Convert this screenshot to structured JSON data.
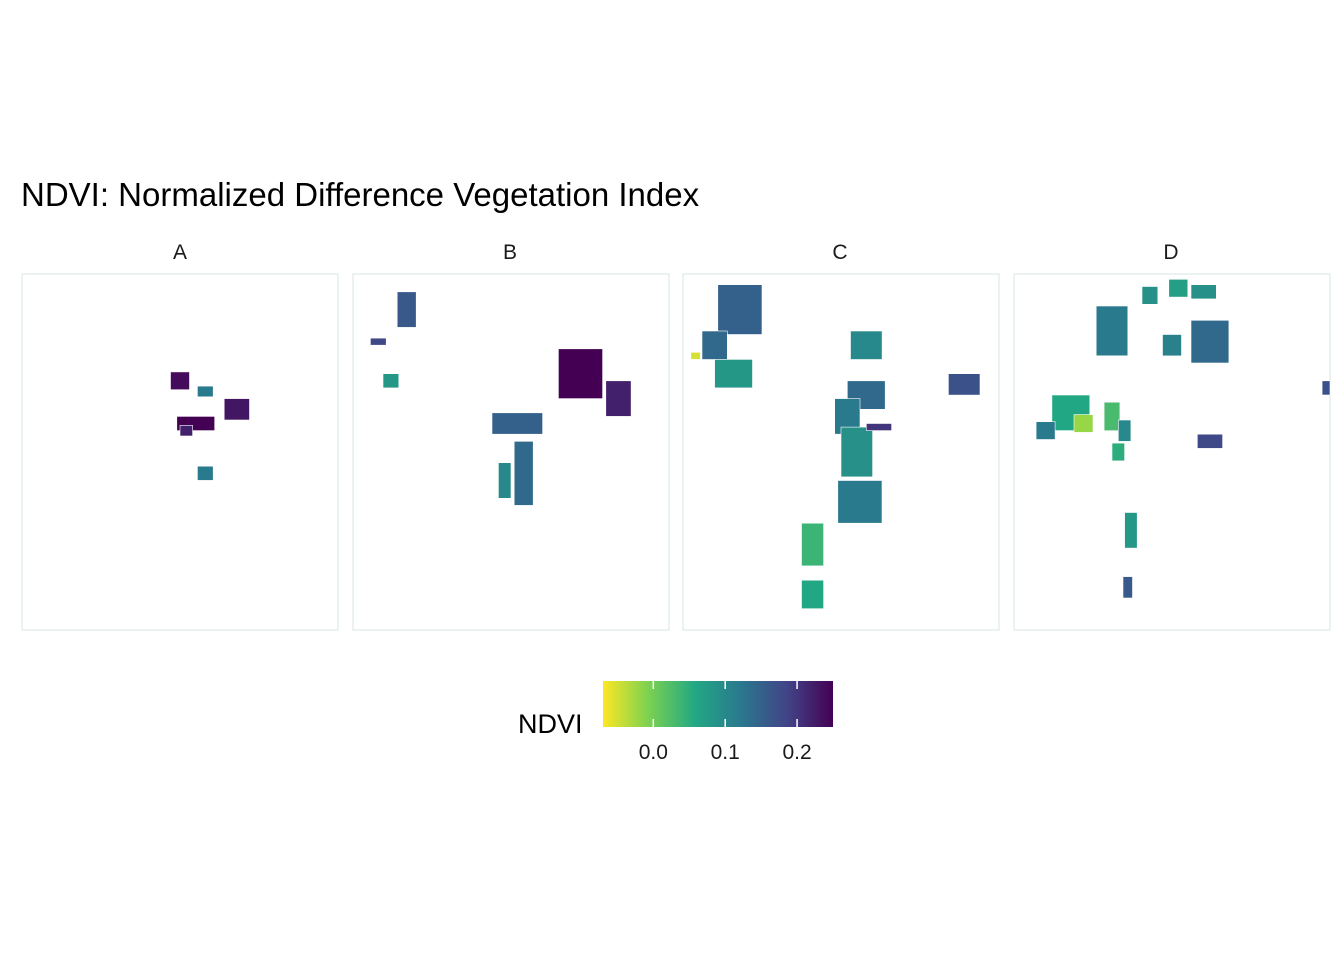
{
  "chart_data": {
    "type": "map",
    "title": "NDVI: Normalized Difference Vegetation Index",
    "facets": [
      {
        "label": "A",
        "regions": [
          {
            "c": [
              0.5,
              0.3
            ],
            "s": [
              0.06,
              0.05
            ],
            "v": 0.24
          },
          {
            "c": [
              0.55,
              0.42
            ],
            "s": [
              0.12,
              0.04
            ],
            "v": 0.25
          },
          {
            "c": [
              0.68,
              0.38
            ],
            "s": [
              0.08,
              0.06
            ],
            "v": 0.23
          },
          {
            "c": [
              0.58,
              0.33
            ],
            "s": [
              0.05,
              0.03
            ],
            "v": 0.12
          },
          {
            "c": [
              0.58,
              0.56
            ],
            "s": [
              0.05,
              0.04
            ],
            "v": 0.12
          },
          {
            "c": [
              0.52,
              0.44
            ],
            "s": [
              0.04,
              0.03
            ],
            "v": 0.22
          }
        ]
      },
      {
        "label": "B",
        "regions": [
          {
            "c": [
              0.17,
              0.1
            ],
            "s": [
              0.06,
              0.1
            ],
            "v": 0.16
          },
          {
            "c": [
              0.08,
              0.19
            ],
            "s": [
              0.05,
              0.02
            ],
            "v": 0.18
          },
          {
            "c": [
              0.12,
              0.3
            ],
            "s": [
              0.05,
              0.04
            ],
            "v": 0.08
          },
          {
            "c": [
              0.72,
              0.28
            ],
            "s": [
              0.14,
              0.14
            ],
            "v": 0.25
          },
          {
            "c": [
              0.84,
              0.35
            ],
            "s": [
              0.08,
              0.1
            ],
            "v": 0.22
          },
          {
            "c": [
              0.52,
              0.42
            ],
            "s": [
              0.16,
              0.06
            ],
            "v": 0.15
          },
          {
            "c": [
              0.54,
              0.56
            ],
            "s": [
              0.06,
              0.18
            ],
            "v": 0.14
          },
          {
            "c": [
              0.48,
              0.58
            ],
            "s": [
              0.04,
              0.1
            ],
            "v": 0.1
          }
        ]
      },
      {
        "label": "C",
        "regions": [
          {
            "c": [
              0.18,
              0.1
            ],
            "s": [
              0.14,
              0.14
            ],
            "v": 0.15
          },
          {
            "c": [
              0.1,
              0.2
            ],
            "s": [
              0.08,
              0.08
            ],
            "v": 0.14
          },
          {
            "c": [
              0.16,
              0.28
            ],
            "s": [
              0.12,
              0.08
            ],
            "v": 0.08
          },
          {
            "c": [
              0.04,
              0.23
            ],
            "s": [
              0.03,
              0.02
            ],
            "v": -0.05
          },
          {
            "c": [
              0.58,
              0.2
            ],
            "s": [
              0.1,
              0.08
            ],
            "v": 0.1
          },
          {
            "c": [
              0.58,
              0.34
            ],
            "s": [
              0.12,
              0.08
            ],
            "v": 0.14
          },
          {
            "c": [
              0.52,
              0.4
            ],
            "s": [
              0.08,
              0.1
            ],
            "v": 0.12
          },
          {
            "c": [
              0.55,
              0.5
            ],
            "s": [
              0.1,
              0.14
            ],
            "v": 0.09
          },
          {
            "c": [
              0.56,
              0.64
            ],
            "s": [
              0.14,
              0.12
            ],
            "v": 0.12
          },
          {
            "c": [
              0.41,
              0.76
            ],
            "s": [
              0.07,
              0.12
            ],
            "v": 0.04
          },
          {
            "c": [
              0.41,
              0.9
            ],
            "s": [
              0.07,
              0.08
            ],
            "v": 0.06
          },
          {
            "c": [
              0.89,
              0.31
            ],
            "s": [
              0.1,
              0.06
            ],
            "v": 0.17
          },
          {
            "c": [
              0.62,
              0.43
            ],
            "s": [
              0.08,
              0.02
            ],
            "v": 0.2
          }
        ]
      },
      {
        "label": "D",
        "regions": [
          {
            "c": [
              0.31,
              0.16
            ],
            "s": [
              0.1,
              0.14
            ],
            "v": 0.12
          },
          {
            "c": [
              0.43,
              0.06
            ],
            "s": [
              0.05,
              0.05
            ],
            "v": 0.09
          },
          {
            "c": [
              0.52,
              0.04
            ],
            "s": [
              0.06,
              0.05
            ],
            "v": 0.07
          },
          {
            "c": [
              0.6,
              0.05
            ],
            "s": [
              0.08,
              0.04
            ],
            "v": 0.09
          },
          {
            "c": [
              0.5,
              0.2
            ],
            "s": [
              0.06,
              0.06
            ],
            "v": 0.11
          },
          {
            "c": [
              0.62,
              0.19
            ],
            "s": [
              0.12,
              0.12
            ],
            "v": 0.14
          },
          {
            "c": [
              0.18,
              0.39
            ],
            "s": [
              0.12,
              0.1
            ],
            "v": 0.06
          },
          {
            "c": [
              0.22,
              0.42
            ],
            "s": [
              0.06,
              0.05
            ],
            "v": -0.02
          },
          {
            "c": [
              0.31,
              0.4
            ],
            "s": [
              0.05,
              0.08
            ],
            "v": 0.03
          },
          {
            "c": [
              0.35,
              0.44
            ],
            "s": [
              0.04,
              0.06
            ],
            "v": 0.1
          },
          {
            "c": [
              0.1,
              0.44
            ],
            "s": [
              0.06,
              0.05
            ],
            "v": 0.12
          },
          {
            "c": [
              0.33,
              0.5
            ],
            "s": [
              0.04,
              0.05
            ],
            "v": 0.05
          },
          {
            "c": [
              0.62,
              0.47
            ],
            "s": [
              0.08,
              0.04
            ],
            "v": 0.18
          },
          {
            "c": [
              0.37,
              0.72
            ],
            "s": [
              0.04,
              0.1
            ],
            "v": 0.08
          },
          {
            "c": [
              0.36,
              0.88
            ],
            "s": [
              0.03,
              0.06
            ],
            "v": 0.16
          },
          {
            "c": [
              0.99,
              0.32
            ],
            "s": [
              0.03,
              0.04
            ],
            "v": 0.17
          }
        ]
      }
    ],
    "legend": {
      "title": "NDVI",
      "position": "bottom",
      "min": -0.07,
      "max": 0.25,
      "ticks": [
        0.0,
        0.1,
        0.2
      ],
      "tick_labels": [
        "0.0",
        "0.1",
        "0.2"
      ],
      "colormap": [
        "#fde725",
        "#7ad151",
        "#22a884",
        "#2a788e",
        "#414487",
        "#440154"
      ]
    }
  }
}
